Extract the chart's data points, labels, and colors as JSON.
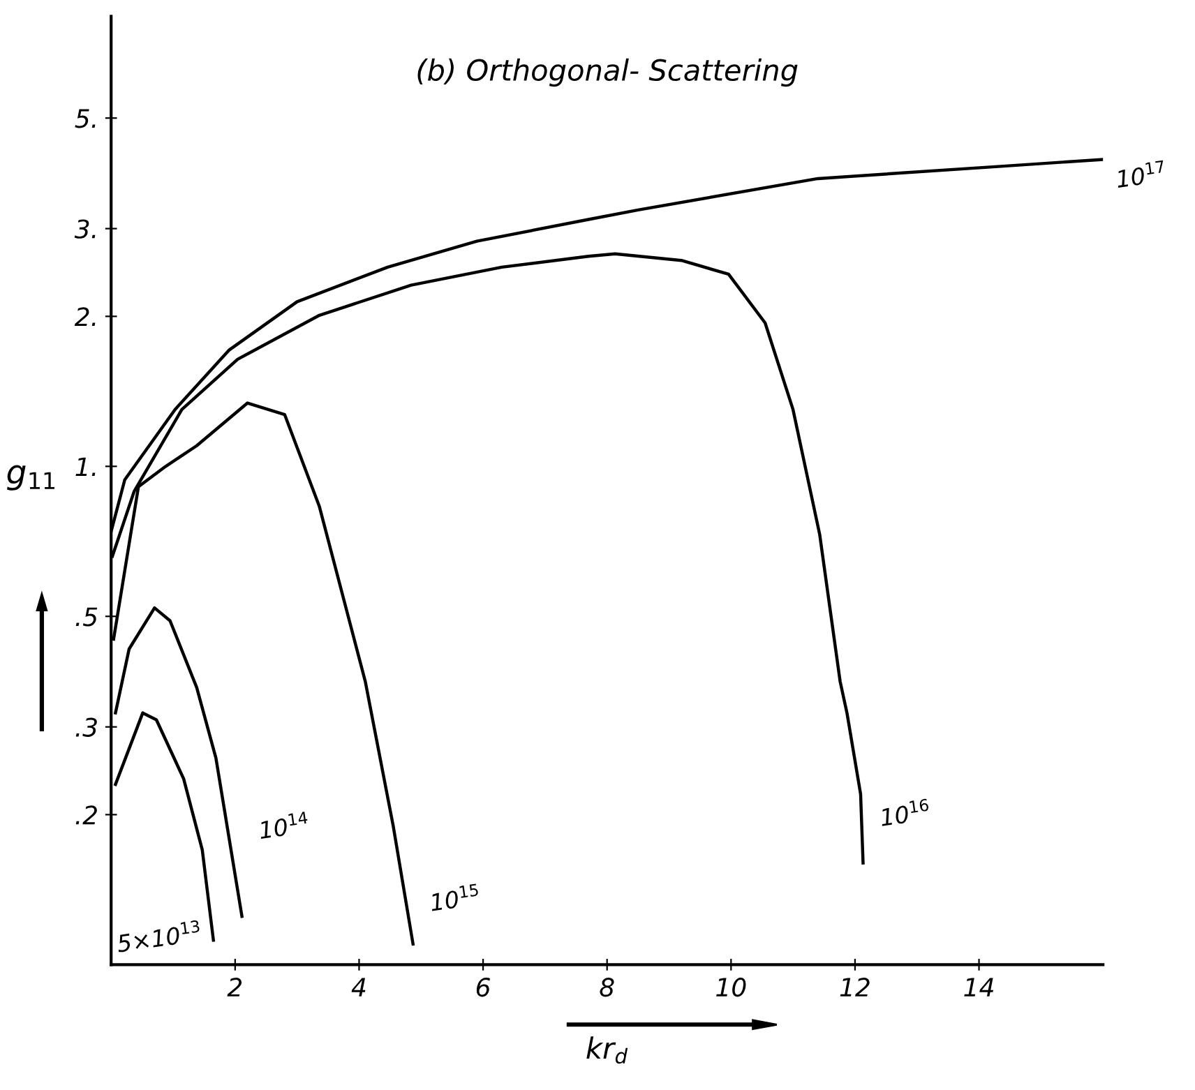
{
  "chart_data": {
    "type": "line",
    "title": "(b) Orthogonal- Scattering",
    "xlabel": "kr$_{d}$",
    "ylabel": "g$_{11}$",
    "log": "y",
    "xlim": [
      0,
      16
    ],
    "ylim": [
      0.1,
      8
    ],
    "xticks": [
      2,
      4,
      6,
      8,
      10,
      12,
      14
    ],
    "yticks": [
      {
        "value": 0.2,
        "label": ".2"
      },
      {
        "value": 0.3,
        "label": ".3"
      },
      {
        "value": 0.5,
        "label": ".5"
      },
      {
        "value": 1,
        "label": "1."
      },
      {
        "value": 2,
        "label": "2."
      },
      {
        "value": 3,
        "label": "3."
      },
      {
        "value": 5,
        "label": "5."
      }
    ],
    "grid": false,
    "marker": "none",
    "line_style": "solid",
    "series": [
      {
        "name": "10$^{17}$",
        "color": "#000000",
        "x": [
          0.0,
          0.22,
          1.03,
          1.9,
          3.0,
          4.46,
          5.9,
          7.7,
          8.5,
          11.4,
          14.35,
          16.0
        ],
        "values": [
          0.74,
          0.94,
          1.3,
          1.71,
          2.14,
          2.51,
          2.83,
          3.13,
          3.27,
          3.78,
          4.0,
          4.13
        ]
      },
      {
        "name": "10$^{16}$",
        "color": "#000000",
        "x": [
          0.02,
          0.37,
          1.14,
          2.04,
          3.36,
          4.84,
          6.3,
          7.7,
          8.13,
          9.2,
          9.96,
          10.55,
          11.0,
          11.43,
          11.76,
          11.87,
          12.09,
          12.13
        ],
        "values": [
          0.66,
          0.89,
          1.3,
          1.64,
          2.01,
          2.31,
          2.51,
          2.64,
          2.67,
          2.59,
          2.43,
          1.94,
          1.3,
          0.73,
          0.37,
          0.32,
          0.22,
          0.16
        ]
      },
      {
        "name": "10$^{15}$",
        "color": "#000000",
        "x": [
          0.04,
          0.44,
          0.88,
          1.38,
          2.2,
          2.8,
          3.36,
          4.1,
          4.55,
          4.87
        ],
        "values": [
          0.45,
          0.91,
          1.0,
          1.1,
          1.34,
          1.27,
          0.83,
          0.37,
          0.19,
          0.11
        ]
      },
      {
        "name": "10$^{14}$",
        "color": "#000000",
        "x": [
          0.07,
          0.29,
          0.7,
          0.95,
          1.38,
          1.69,
          2.11
        ],
        "values": [
          0.32,
          0.43,
          0.52,
          0.49,
          0.36,
          0.26,
          0.125
        ]
      },
      {
        "name": "5×10$^{13}$",
        "color": "#000000",
        "x": [
          0.07,
          0.51,
          0.73,
          1.17,
          1.47,
          1.65
        ],
        "values": [
          0.23,
          0.32,
          0.31,
          0.236,
          0.17,
          0.112
        ]
      }
    ]
  }
}
